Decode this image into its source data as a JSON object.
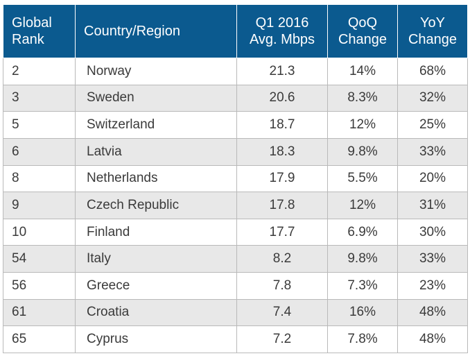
{
  "table": {
    "headers": {
      "rank": [
        "Global",
        "Rank"
      ],
      "country": "Country/Region",
      "speed": [
        "Q1 2016",
        "Avg. Mbps"
      ],
      "qoq": [
        "QoQ",
        "Change"
      ],
      "yoy": [
        "YoY",
        "Change"
      ]
    },
    "rows": [
      {
        "rank": "2",
        "country": "Norway",
        "speed": "21.3",
        "qoq": "14%",
        "yoy": "68%"
      },
      {
        "rank": "3",
        "country": "Sweden",
        "speed": "20.6",
        "qoq": "8.3%",
        "yoy": "32%"
      },
      {
        "rank": "5",
        "country": "Switzerland",
        "speed": "18.7",
        "qoq": "12%",
        "yoy": "25%"
      },
      {
        "rank": "6",
        "country": "Latvia",
        "speed": "18.3",
        "qoq": "9.8%",
        "yoy": "33%"
      },
      {
        "rank": "8",
        "country": "Netherlands",
        "speed": "17.9",
        "qoq": "5.5%",
        "yoy": "20%"
      },
      {
        "rank": "9",
        "country": "Czech Republic",
        "speed": "17.8",
        "qoq": "12%",
        "yoy": "31%"
      },
      {
        "rank": "10",
        "country": "Finland",
        "speed": "17.7",
        "qoq": "6.9%",
        "yoy": "30%"
      },
      {
        "rank": "54",
        "country": "Italy",
        "speed": "8.2",
        "qoq": "9.8%",
        "yoy": "33%"
      },
      {
        "rank": "56",
        "country": "Greece",
        "speed": "7.8",
        "qoq": "7.3%",
        "yoy": "23%"
      },
      {
        "rank": "61",
        "country": "Croatia",
        "speed": "7.4",
        "qoq": "16%",
        "yoy": "48%"
      },
      {
        "rank": "65",
        "country": "Cyprus",
        "speed": "7.2",
        "qoq": "7.8%",
        "yoy": "48%"
      }
    ]
  },
  "colors": {
    "header_bg": "#0b5a8f",
    "header_text": "#ffffff",
    "stripe_bg": "#e8e8e8",
    "border": "#b9b9b9"
  }
}
